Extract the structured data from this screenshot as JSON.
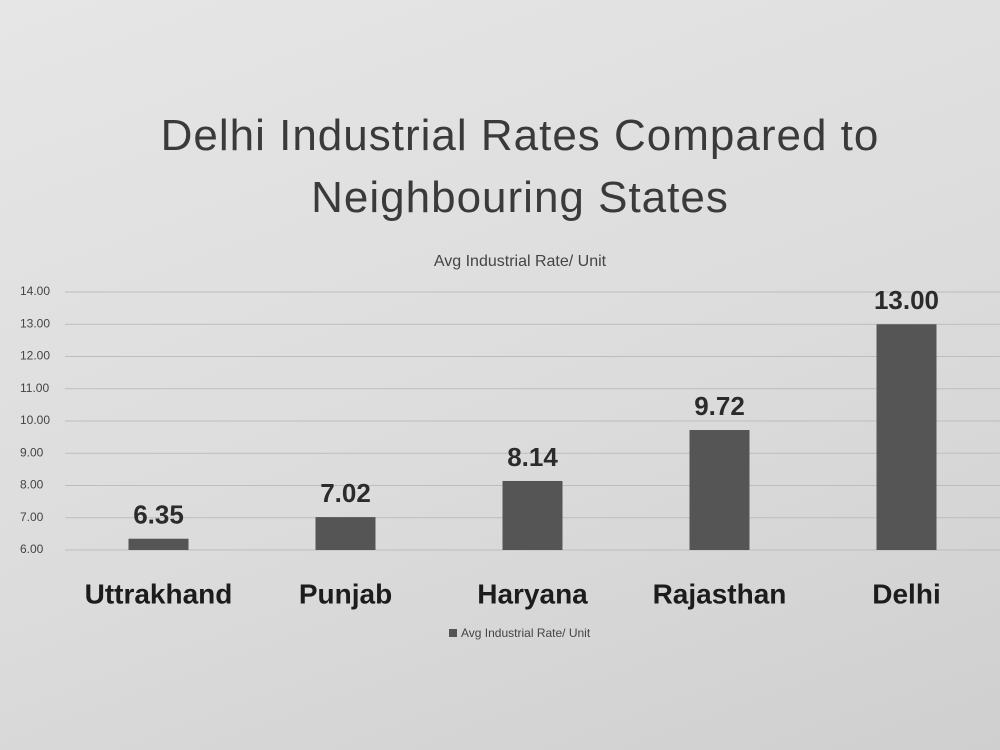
{
  "chart_data": {
    "type": "bar",
    "title": "Delhi Industrial Rates Compared to Neighbouring States",
    "subtitle": "Avg Industrial Rate/ Unit",
    "categories": [
      "Uttrakhand",
      "Punjab",
      "Haryana",
      "Rajasthan",
      "Delhi"
    ],
    "series": [
      {
        "name": "Avg Industrial Rate/ Unit",
        "color": "#555555",
        "values": [
          6.35,
          7.02,
          8.14,
          9.72,
          13.0
        ],
        "value_labels": [
          "6.35",
          "7.02",
          "8.14",
          "9.72",
          "13.00"
        ]
      }
    ],
    "ylim": [
      6,
      14
    ],
    "yticks": [
      {
        "value": 6,
        "label": "6.00"
      },
      {
        "value": 7,
        "label": "7.00"
      },
      {
        "value": 8,
        "label": "8.00"
      },
      {
        "value": 9,
        "label": "9.00"
      },
      {
        "value": 10,
        "label": "10.00"
      },
      {
        "value": 11,
        "label": "11.00"
      },
      {
        "value": 12,
        "label": "12.00"
      },
      {
        "value": 13,
        "label": "13.00"
      },
      {
        "value": 14,
        "label": "14.00"
      }
    ],
    "grid": true,
    "legend": "bottom"
  }
}
